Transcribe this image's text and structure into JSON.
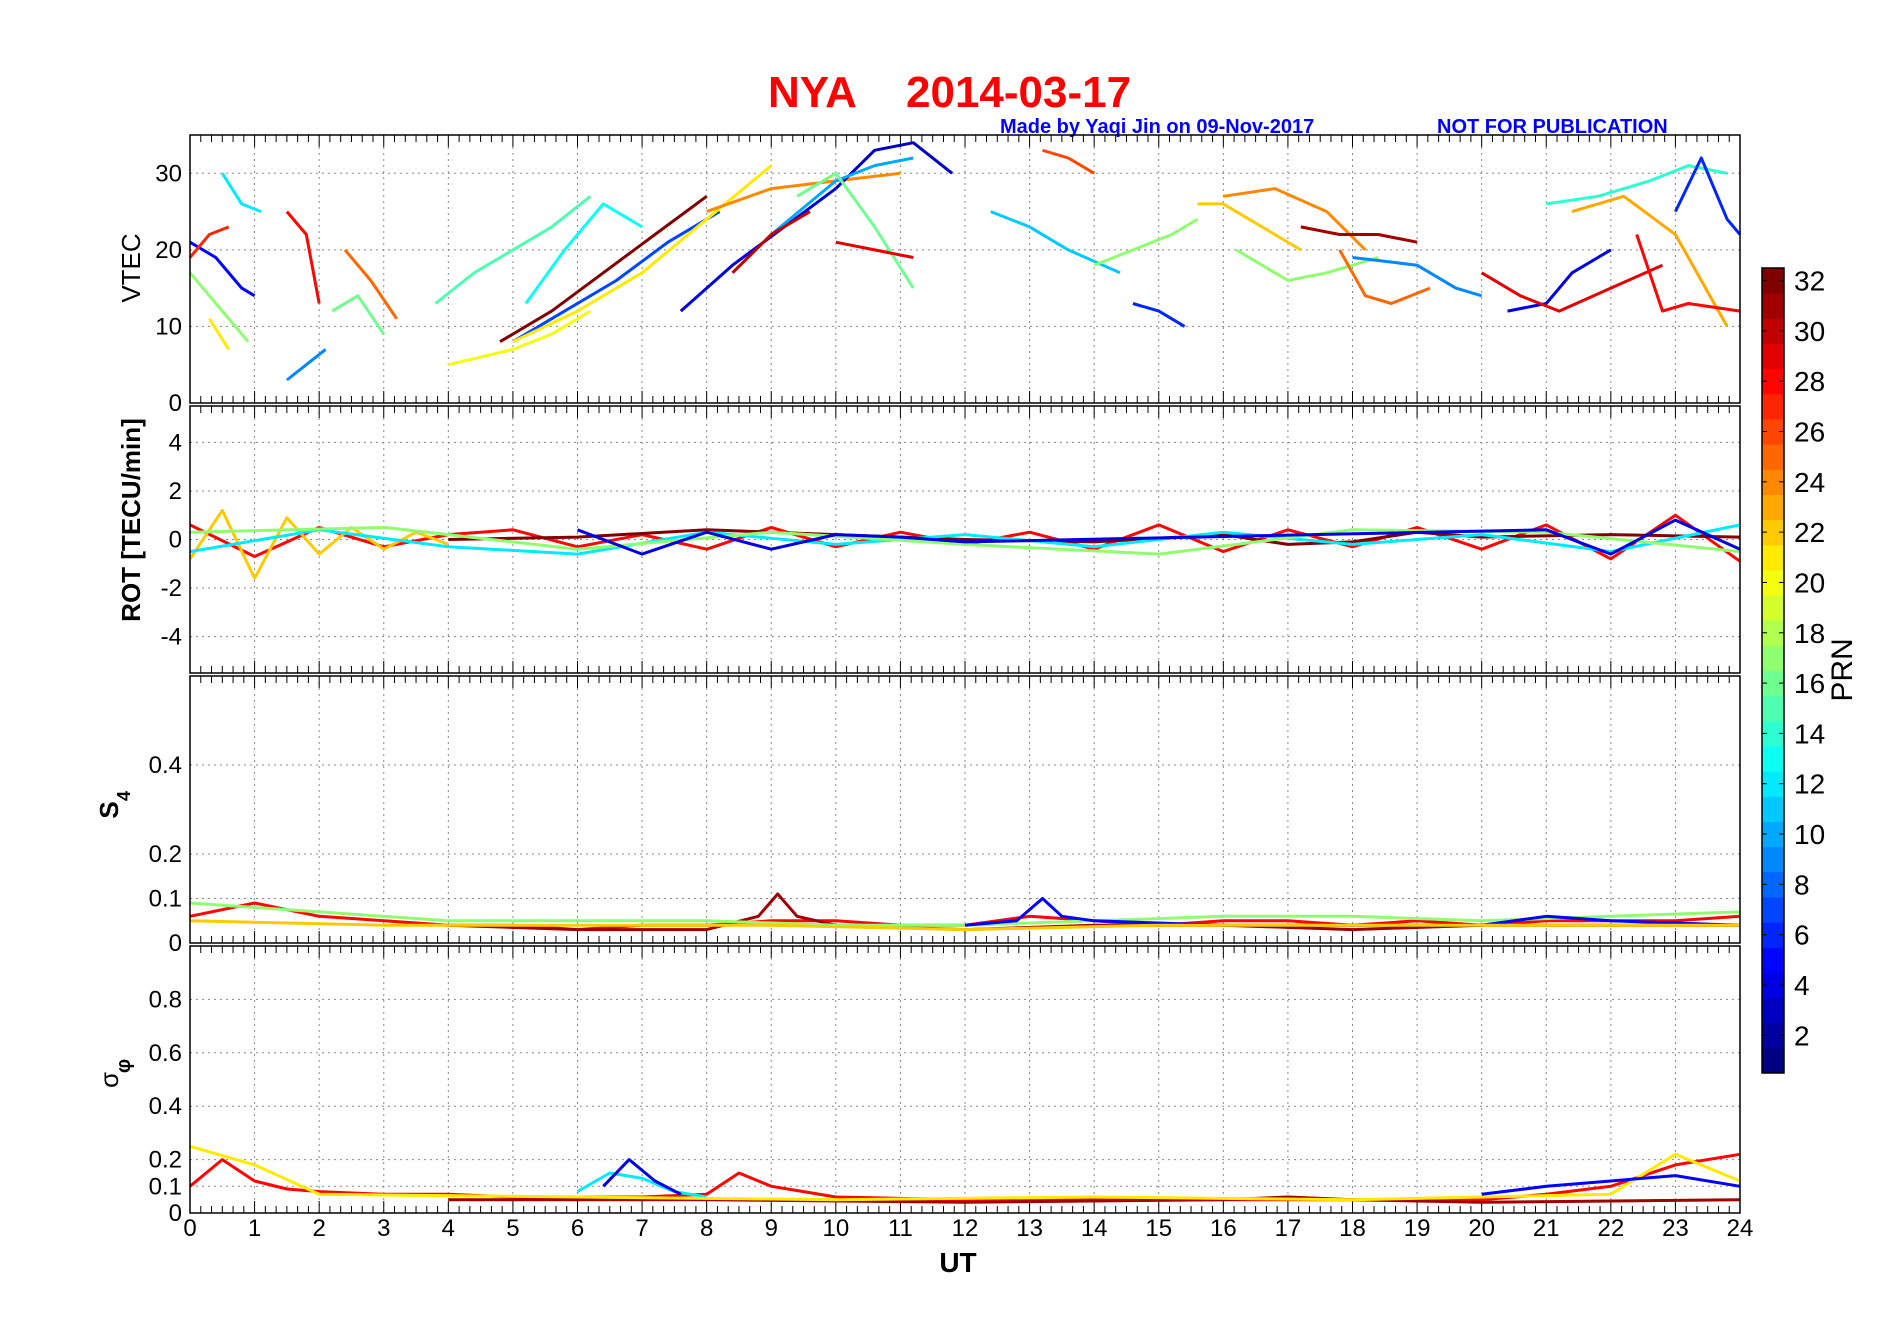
{
  "header": {
    "station": "NYA",
    "date": "2014-03-17",
    "credit": "Made by Yaqi Jin on 09-Nov-2017",
    "notice": "NOT FOR PUBLICATION"
  },
  "colorbar": {
    "label": "PRN",
    "range": [
      1,
      32
    ],
    "ticks": [
      "2",
      "4",
      "6",
      "8",
      "10",
      "12",
      "14",
      "16",
      "18",
      "20",
      "22",
      "24",
      "26",
      "28",
      "30",
      "32"
    ],
    "colormap": "jet"
  },
  "chart_data": [
    {
      "type": "line",
      "panel": "vtec",
      "ylabel": "VTEC",
      "ylim": [
        0,
        35
      ],
      "yticks": [
        "0",
        "10",
        "20",
        "30"
      ],
      "grid": true,
      "series": [
        {
          "prn": 5,
          "x": [
            0.0,
            0.4,
            0.8,
            1.0
          ],
          "y": [
            21,
            19,
            15,
            14
          ]
        },
        {
          "prn": 27,
          "x": [
            0.0,
            0.3,
            0.6
          ],
          "y": [
            19,
            22,
            23
          ]
        },
        {
          "prn": 17,
          "x": [
            0.0,
            0.5,
            0.9
          ],
          "y": [
            17,
            12,
            8
          ]
        },
        {
          "prn": 12,
          "x": [
            0.5,
            0.8,
            1.1
          ],
          "y": [
            30,
            26,
            25
          ]
        },
        {
          "prn": 21,
          "x": [
            0.3,
            0.6
          ],
          "y": [
            11,
            7
          ]
        },
        {
          "prn": 28,
          "x": [
            1.5,
            1.8,
            2.0
          ],
          "y": [
            25,
            22,
            13
          ]
        },
        {
          "prn": 9,
          "x": [
            1.5,
            1.8,
            2.1
          ],
          "y": [
            3,
            5,
            7
          ]
        },
        {
          "prn": 16,
          "x": [
            2.2,
            2.6,
            3.0
          ],
          "y": [
            12,
            14,
            9
          ]
        },
        {
          "prn": 25,
          "x": [
            2.4,
            2.8,
            3.2
          ],
          "y": [
            20,
            16,
            11
          ]
        },
        {
          "prn": 15,
          "x": [
            3.8,
            4.4,
            5.0,
            5.6,
            6.2
          ],
          "y": [
            13,
            17,
            20,
            23,
            27
          ]
        },
        {
          "prn": 20,
          "x": [
            4.0,
            5.0,
            5.6,
            6.2
          ],
          "y": [
            5,
            7,
            9,
            12
          ]
        },
        {
          "prn": 32,
          "x": [
            4.8,
            5.6,
            6.4,
            7.2,
            8.0
          ],
          "y": [
            8,
            12,
            17,
            22,
            27
          ]
        },
        {
          "prn": 7,
          "x": [
            5.0,
            5.8,
            6.6,
            7.4,
            8.2
          ],
          "y": [
            8,
            12,
            16,
            21,
            25
          ]
        },
        {
          "prn": 13,
          "x": [
            5.2,
            5.8,
            6.4,
            7.0
          ],
          "y": [
            13,
            20,
            26,
            23
          ]
        },
        {
          "prn": 21,
          "x": [
            5.0,
            6.0,
            7.0,
            8.0,
            9.0
          ],
          "y": [
            8,
            12,
            17,
            24,
            31
          ]
        },
        {
          "prn": 4,
          "x": [
            7.6,
            8.4,
            9.2,
            10.0
          ],
          "y": [
            12,
            18,
            23,
            28
          ]
        },
        {
          "prn": 24,
          "x": [
            8.0,
            9.0,
            10.0,
            11.0
          ],
          "y": [
            25,
            28,
            29,
            30
          ]
        },
        {
          "prn": 3,
          "x": [
            10.0,
            10.6,
            11.2,
            11.8
          ],
          "y": [
            28,
            33,
            34,
            30
          ]
        },
        {
          "prn": 10,
          "x": [
            9.0,
            10.0,
            10.6,
            11.2
          ],
          "y": [
            22,
            29,
            31,
            32
          ]
        },
        {
          "prn": 16,
          "x": [
            9.4,
            10.0,
            10.6,
            11.2
          ],
          "y": [
            27,
            30,
            23,
            15
          ]
        },
        {
          "prn": 29,
          "x": [
            10.0,
            10.6,
            11.2
          ],
          "y": [
            21,
            20,
            19
          ]
        },
        {
          "prn": 30,
          "x": [
            8.4,
            9.0,
            9.6
          ],
          "y": [
            17,
            22,
            25
          ]
        },
        {
          "prn": 26,
          "x": [
            13.2,
            13.6,
            14.0
          ],
          "y": [
            33,
            32,
            30
          ]
        },
        {
          "prn": 11,
          "x": [
            12.4,
            13.0,
            13.6,
            14.4
          ],
          "y": [
            25,
            23,
            20,
            17
          ]
        },
        {
          "prn": 17,
          "x": [
            14.0,
            14.6,
            15.2,
            15.6
          ],
          "y": [
            18,
            20,
            22,
            24
          ]
        },
        {
          "prn": 6,
          "x": [
            14.6,
            15.0,
            15.4
          ],
          "y": [
            13,
            12,
            10
          ]
        },
        {
          "prn": 22,
          "x": [
            15.6,
            16.0,
            16.6,
            17.2
          ],
          "y": [
            26,
            26,
            23,
            20
          ]
        },
        {
          "prn": 24,
          "x": [
            16.0,
            16.8,
            17.6,
            18.2
          ],
          "y": [
            27,
            28,
            25,
            20
          ]
        },
        {
          "prn": 31,
          "x": [
            17.2,
            17.8,
            18.4,
            19.0
          ],
          "y": [
            23,
            22,
            22,
            21
          ]
        },
        {
          "prn": 17,
          "x": [
            16.2,
            17.0,
            17.6,
            18.4
          ],
          "y": [
            20,
            16,
            17,
            19
          ]
        },
        {
          "prn": 9,
          "x": [
            18.0,
            19.0,
            19.6,
            20.0
          ],
          "y": [
            19,
            18,
            15,
            14
          ]
        },
        {
          "prn": 25,
          "x": [
            17.8,
            18.2,
            18.6,
            19.2
          ],
          "y": [
            20,
            14,
            13,
            15
          ]
        },
        {
          "prn": 4,
          "x": [
            20.4,
            21.0,
            21.4,
            22.0
          ],
          "y": [
            12,
            13,
            17,
            20
          ]
        },
        {
          "prn": 29,
          "x": [
            20.0,
            20.6,
            21.2,
            22.0,
            22.8
          ],
          "y": [
            17,
            14,
            12,
            15,
            18
          ]
        },
        {
          "prn": 14,
          "x": [
            21.0,
            21.8,
            22.6,
            23.2,
            23.8
          ],
          "y": [
            26,
            27,
            29,
            31,
            30
          ]
        },
        {
          "prn": 23,
          "x": [
            21.4,
            22.2,
            23.0,
            23.8
          ],
          "y": [
            25,
            27,
            22,
            10
          ]
        },
        {
          "prn": 28,
          "x": [
            22.4,
            22.8,
            23.2,
            24.0
          ],
          "y": [
            22,
            12,
            13,
            12
          ]
        },
        {
          "prn": 6,
          "x": [
            23.0,
            23.4,
            23.8,
            24.0
          ],
          "y": [
            25,
            32,
            24,
            22
          ]
        }
      ]
    },
    {
      "type": "line",
      "panel": "rot",
      "ylabel": "ROT [TECU/min]",
      "ylim": [
        -5.5,
        5.5
      ],
      "yticks": [
        "-4",
        "-2",
        "0",
        "2",
        "4"
      ],
      "grid": true,
      "series": [
        {
          "prn": 28,
          "x": [
            0,
            1,
            2,
            3,
            4,
            5,
            6,
            7,
            8,
            9,
            10,
            11,
            12,
            13,
            14,
            15,
            16,
            17,
            18,
            19,
            20,
            21,
            22,
            23,
            24
          ],
          "y": [
            0.6,
            -0.7,
            0.5,
            -0.3,
            0.2,
            0.4,
            -0.3,
            0.2,
            -0.4,
            0.5,
            -0.3,
            0.3,
            -0.2,
            0.3,
            -0.4,
            0.6,
            -0.5,
            0.4,
            -0.3,
            0.5,
            -0.4,
            0.6,
            -0.8,
            1.0,
            -0.9
          ]
        },
        {
          "prn": 32,
          "x": [
            4,
            6,
            8,
            10,
            12,
            14,
            16,
            17,
            18,
            19,
            20,
            22,
            24
          ],
          "y": [
            0,
            0.1,
            0.4,
            0.2,
            0,
            -0.1,
            0.2,
            -0.2,
            -0.1,
            0.3,
            0.1,
            0.2,
            0.1
          ]
        },
        {
          "prn": 22,
          "x": [
            0,
            0.5,
            1,
            1.5,
            2,
            2.5,
            3,
            3.5,
            4
          ],
          "y": [
            -0.8,
            1.2,
            -1.6,
            0.9,
            -0.6,
            0.5,
            -0.4,
            0.3,
            -0.2
          ]
        },
        {
          "prn": 12,
          "x": [
            0,
            2,
            4,
            6,
            8,
            10,
            12,
            14,
            16,
            18,
            20,
            22,
            24
          ],
          "y": [
            -0.5,
            0.4,
            -0.3,
            -0.6,
            0.3,
            -0.2,
            0.2,
            -0.3,
            0.3,
            -0.2,
            0.2,
            -0.5,
            0.6
          ]
        },
        {
          "prn": 17,
          "x": [
            0,
            3,
            6,
            9,
            12,
            15,
            18,
            21,
            24
          ],
          "y": [
            0.3,
            0.5,
            -0.4,
            0.3,
            -0.2,
            -0.6,
            0.4,
            0.3,
            -0.5
          ]
        },
        {
          "prn": 4,
          "x": [
            6,
            7,
            8,
            9,
            10,
            11,
            12,
            21,
            22,
            23,
            24
          ],
          "y": [
            0.4,
            -0.6,
            0.3,
            -0.4,
            0.2,
            0.1,
            -0.1,
            0.4,
            -0.6,
            0.8,
            -0.4
          ]
        }
      ]
    },
    {
      "type": "line",
      "panel": "s4",
      "ylabel": "S4",
      "ylim": [
        0,
        0.6
      ],
      "yticks": [
        "0",
        "0.1",
        "0.2",
        "0.4"
      ],
      "grid": true,
      "series": [
        {
          "prn": 28,
          "x": [
            0,
            1,
            2,
            3,
            4,
            5,
            6,
            7,
            8,
            9,
            10,
            11,
            12,
            13,
            14,
            15,
            16,
            17,
            18,
            19,
            20,
            21,
            22,
            23,
            24
          ],
          "y": [
            0.06,
            0.09,
            0.06,
            0.05,
            0.04,
            0.04,
            0.03,
            0.04,
            0.04,
            0.05,
            0.05,
            0.04,
            0.04,
            0.06,
            0.05,
            0.04,
            0.05,
            0.05,
            0.04,
            0.05,
            0.04,
            0.05,
            0.05,
            0.05,
            0.06
          ]
        },
        {
          "prn": 31,
          "x": [
            4,
            6,
            8,
            8.8,
            9.1,
            9.4,
            10,
            12,
            14,
            16,
            18,
            20,
            22,
            24
          ],
          "y": [
            0.04,
            0.03,
            0.03,
            0.06,
            0.11,
            0.06,
            0.04,
            0.03,
            0.04,
            0.04,
            0.03,
            0.04,
            0.04,
            0.04
          ]
        },
        {
          "prn": 17,
          "x": [
            0,
            2,
            4,
            6,
            8,
            10,
            12,
            14,
            16,
            18,
            20,
            22,
            24
          ],
          "y": [
            0.09,
            0.07,
            0.05,
            0.05,
            0.05,
            0.04,
            0.04,
            0.05,
            0.06,
            0.06,
            0.05,
            0.06,
            0.07
          ]
        },
        {
          "prn": 5,
          "x": [
            12,
            12.8,
            13.2,
            13.5,
            14,
            16,
            20,
            21,
            22,
            24
          ],
          "y": [
            0.04,
            0.05,
            0.1,
            0.06,
            0.05,
            0.04,
            0.04,
            0.06,
            0.05,
            0.04
          ]
        },
        {
          "prn": 22,
          "x": [
            0,
            3,
            6,
            9,
            12,
            15,
            18,
            21,
            24
          ],
          "y": [
            0.05,
            0.04,
            0.04,
            0.04,
            0.03,
            0.04,
            0.04,
            0.04,
            0.04
          ]
        }
      ]
    },
    {
      "type": "line",
      "panel": "sigma-phi",
      "ylabel": "σφ",
      "ylim": [
        0,
        1.0
      ],
      "yticks": [
        "0",
        "0.1",
        "0.2",
        "0.4",
        "0.6",
        "0.8"
      ],
      "grid": true,
      "series": [
        {
          "prn": 28,
          "x": [
            0,
            0.5,
            1,
            1.5,
            2,
            3,
            4,
            5,
            6,
            7,
            8,
            8.5,
            9,
            9.5,
            10,
            12,
            14,
            16,
            18,
            20,
            21,
            22,
            23,
            24
          ],
          "y": [
            0.1,
            0.2,
            0.12,
            0.09,
            0.08,
            0.07,
            0.07,
            0.06,
            0.06,
            0.06,
            0.07,
            0.15,
            0.1,
            0.08,
            0.06,
            0.05,
            0.05,
            0.05,
            0.05,
            0.05,
            0.07,
            0.1,
            0.18,
            0.22
          ]
        },
        {
          "prn": 12,
          "x": [
            6,
            6.5,
            7,
            7.5,
            8
          ],
          "y": [
            0.08,
            0.15,
            0.13,
            0.08,
            0.06
          ]
        },
        {
          "prn": 4,
          "x": [
            6.4,
            6.8,
            7.2,
            7.6
          ],
          "y": [
            0.1,
            0.2,
            0.12,
            0.07
          ]
        },
        {
          "prn": 31,
          "x": [
            4,
            8,
            12,
            16,
            17,
            18,
            20,
            24
          ],
          "y": [
            0.05,
            0.05,
            0.04,
            0.05,
            0.06,
            0.05,
            0.04,
            0.05
          ]
        },
        {
          "prn": 21,
          "x": [
            0,
            1,
            2,
            6,
            10,
            14,
            18,
            22,
            23,
            24
          ],
          "y": [
            0.25,
            0.18,
            0.07,
            0.06,
            0.05,
            0.06,
            0.05,
            0.07,
            0.22,
            0.12
          ]
        },
        {
          "prn": 5,
          "x": [
            20,
            21,
            22,
            23,
            24
          ],
          "y": [
            0.07,
            0.1,
            0.12,
            0.14,
            0.1
          ]
        }
      ]
    }
  ],
  "xaxis": {
    "label": "UT",
    "ticks": [
      "0",
      "1",
      "2",
      "3",
      "4",
      "5",
      "6",
      "7",
      "8",
      "9",
      "10",
      "11",
      "12",
      "13",
      "14",
      "15",
      "16",
      "17",
      "18",
      "19",
      "20",
      "21",
      "22",
      "23",
      "24"
    ],
    "range": [
      0,
      24
    ]
  }
}
